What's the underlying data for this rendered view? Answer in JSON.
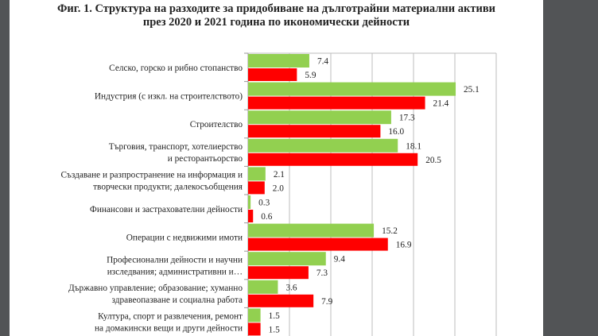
{
  "chart_data": {
    "type": "bar",
    "orientation": "horizontal",
    "title": "Фиг. 1. Структура на разходите за придобиване на дълготрайни материални активи през 2020 и 2021 година по икономически дейности",
    "title_lines": [
      "Фиг. 1. Структура на разходите за придобиване на дълготрайни материални активи",
      "през 2020 и 2021 година по икономически дейности"
    ],
    "categories": [
      [
        "Селско, горско и рибно стопанство"
      ],
      [
        "Индустрия (с изкл. на строителството)"
      ],
      [
        "Строителство"
      ],
      [
        "Търговия, транспорт, хотелиерство",
        "и ресторантьорство"
      ],
      [
        "Създаване и разпространение на информация и",
        "творчески продукти; далекосъобщения"
      ],
      [
        "Финансови и застрахователни дейности"
      ],
      [
        "Операции с недвижими имоти"
      ],
      [
        "Професионални дейности и научни",
        "изследвания; административни и…"
      ],
      [
        "Държавно управление; образование; хуманно",
        "здравеопазване и социална работа"
      ],
      [
        "Култура, спорт и развлечения, ремонт",
        "на домакински вещи и други дейности"
      ]
    ],
    "series": [
      {
        "color": "#92d050",
        "values": [
          7.4,
          25.1,
          17.3,
          18.1,
          2.1,
          0.3,
          15.2,
          9.4,
          3.6,
          1.5
        ]
      },
      {
        "color": "#ff0000",
        "values": [
          5.9,
          21.4,
          16.0,
          20.5,
          2.0,
          0.6,
          16.9,
          7.3,
          7.9,
          1.5
        ]
      }
    ],
    "xlim": [
      0,
      30
    ],
    "grid": true,
    "legend": "none",
    "data_labels": true
  }
}
